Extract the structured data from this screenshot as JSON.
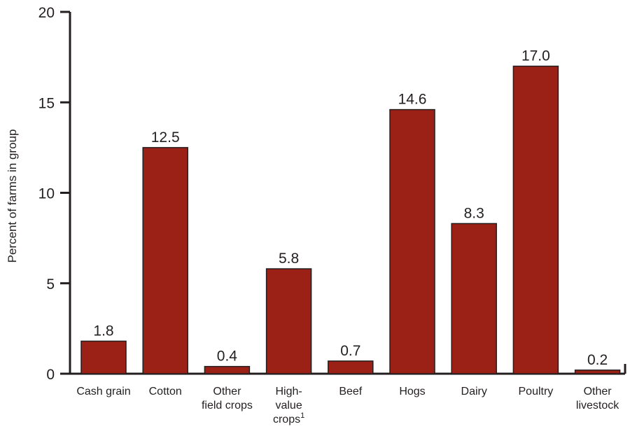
{
  "chart_data": {
    "type": "bar",
    "title": "",
    "xlabel": "",
    "ylabel": "Percent of farms in group",
    "ylim": [
      0,
      20
    ],
    "yticks": [
      "0",
      "5",
      "10",
      "15",
      "20"
    ],
    "grid": false,
    "categories": [
      [
        "Cash grain"
      ],
      [
        "Cotton"
      ],
      [
        "Other",
        "field crops"
      ],
      [
        "High-",
        "value",
        "crops"
      ],
      [
        "Beef"
      ],
      [
        "Hogs"
      ],
      [
        "Dairy"
      ],
      [
        "Poultry"
      ],
      [
        "Other",
        "livestock"
      ]
    ],
    "footnote_marks": [
      "",
      "",
      "",
      "1",
      "",
      "",
      "",
      "",
      ""
    ],
    "values": [
      1.8,
      12.5,
      0.4,
      5.8,
      0.7,
      14.6,
      8.3,
      17.0,
      0.2
    ],
    "value_labels": [
      "1.8",
      "12.5",
      "0.4",
      "5.8",
      "0.7",
      "14.6",
      "8.3",
      "17.0",
      "0.2"
    ],
    "colors": {
      "bar": "#9b2116",
      "axis": "#231f20",
      "text": "#231f20"
    }
  }
}
